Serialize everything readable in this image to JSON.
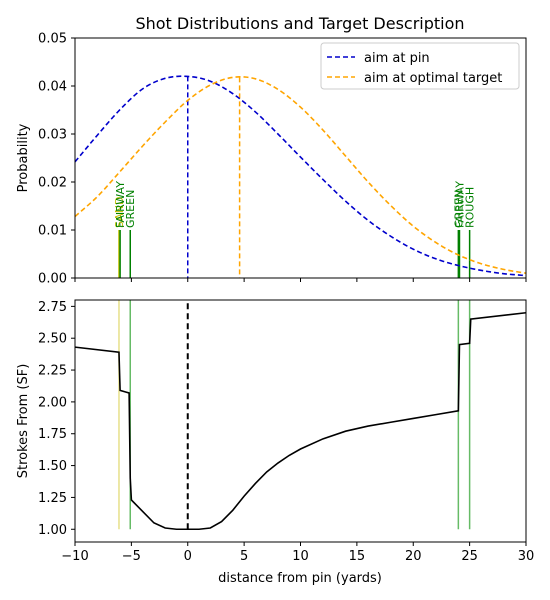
{
  "figure": {
    "title": "Shot Distributions and Target Description"
  },
  "chart_data": [
    {
      "type": "line",
      "ylabel": "Probability",
      "xlim": [
        -10,
        30
      ],
      "ylim": [
        0,
        0.05
      ],
      "xticks": [
        -10,
        -5,
        0,
        5,
        10,
        15,
        20,
        25,
        30
      ],
      "yticks": [
        "0.00",
        "0.01",
        "0.02",
        "0.03",
        "0.04",
        "0.05"
      ],
      "grid": false,
      "legend_position": "top-right",
      "series": [
        {
          "name": "aim at pin",
          "style": "dashed",
          "color": "#0000cc",
          "x": [
            -10,
            -8,
            -6,
            -4,
            -2,
            0,
            2,
            4,
            6,
            8,
            10,
            12,
            14,
            16,
            18,
            20,
            22,
            24,
            26,
            28,
            30
          ],
          "y": [
            0.0242,
            0.0298,
            0.0351,
            0.0394,
            0.0416,
            0.042,
            0.041,
            0.0384,
            0.0346,
            0.03,
            0.0252,
            0.0205,
            0.016,
            0.012,
            0.0087,
            0.006,
            0.004,
            0.0026,
            0.0016,
            0.0009,
            0.0005
          ]
        },
        {
          "name": "aim at optimal target",
          "style": "dashed",
          "color": "#ffa500",
          "x": [
            -10,
            -8,
            -6,
            -4,
            -2,
            0,
            2,
            4,
            6,
            8,
            10,
            12,
            14,
            16,
            18,
            20,
            22,
            24,
            26,
            28,
            30
          ],
          "y": [
            0.0128,
            0.017,
            0.0222,
            0.0275,
            0.0325,
            0.037,
            0.0402,
            0.0418,
            0.0415,
            0.0393,
            0.0356,
            0.0308,
            0.0254,
            0.02,
            0.0151,
            0.0108,
            0.0074,
            0.0048,
            0.003,
            0.0018,
            0.001
          ]
        }
      ],
      "aim_lines": [
        {
          "x": 0,
          "y": 0.042,
          "color": "#0000cc"
        },
        {
          "x": 4.6,
          "y": 0.0418,
          "color": "#ffa500"
        }
      ],
      "boundaries": [
        {
          "x": -6.1,
          "label": "SAND",
          "color": "#bfbf00"
        },
        {
          "x": -6.0,
          "label": "FAIRWAY",
          "color": "#008000"
        },
        {
          "x": -5.1,
          "label": "GREEN",
          "color": "#008000"
        },
        {
          "x": 24.0,
          "label": "GREEN",
          "color": "#008000"
        },
        {
          "x": 24.1,
          "label": "FAIRWAY",
          "color": "#008000"
        },
        {
          "x": 25.0,
          "label": "ROUGH",
          "color": "#008000"
        }
      ]
    },
    {
      "type": "line",
      "xlabel": "distance from pin (yards)",
      "ylabel": "Strokes From (SF)",
      "xlim": [
        -10,
        30
      ],
      "ylim": [
        0.9,
        2.8
      ],
      "xticks": [
        -10,
        -5,
        0,
        5,
        10,
        15,
        20,
        25,
        30
      ],
      "yticks": [
        "1.00",
        "1.25",
        "1.50",
        "1.75",
        "2.00",
        "2.25",
        "2.50",
        "2.75"
      ],
      "grid": false,
      "series": [
        {
          "color": "#000000",
          "x": [
            -10,
            -6.1,
            -6.0,
            -5.2,
            -5.1,
            -5.0,
            -4,
            -3,
            -2,
            -1,
            0,
            1,
            2,
            3,
            4,
            5,
            6,
            7,
            8,
            9,
            10,
            12,
            14,
            16,
            18,
            20,
            22,
            24.0,
            24.1,
            25.0,
            25.1,
            30
          ],
          "y": [
            2.43,
            2.39,
            2.09,
            2.07,
            1.4,
            1.23,
            1.14,
            1.05,
            1.01,
            1.0,
            1.0,
            1.0,
            1.01,
            1.06,
            1.15,
            1.26,
            1.36,
            1.45,
            1.52,
            1.58,
            1.63,
            1.71,
            1.77,
            1.81,
            1.84,
            1.87,
            1.9,
            1.93,
            2.45,
            2.46,
            2.65,
            2.7
          ]
        }
      ],
      "pin_line": {
        "x": 0,
        "y_from": 1.0,
        "y_to": 2.8,
        "color": "#000000"
      },
      "boundaries": [
        {
          "x": -6.1,
          "color": "#e6e08a"
        },
        {
          "x": -5.1,
          "color": "#66bb66"
        },
        {
          "x": 24.0,
          "color": "#66bb66"
        },
        {
          "x": 25.0,
          "color": "#66bb66"
        }
      ]
    }
  ]
}
